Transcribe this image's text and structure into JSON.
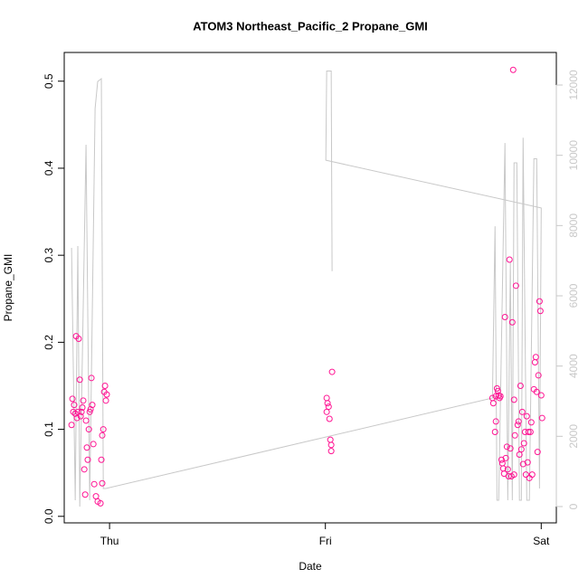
{
  "chart_data": {
    "type": "scatter",
    "title": "ATOM3 Northeast_Pacific_2 Propane_GMI",
    "xlabel": "Date",
    "ylabel": "Propane_GMI",
    "xlim": [
      -0.21,
      2.07
    ],
    "xticks": [
      {
        "value": 0,
        "label": "Thu"
      },
      {
        "value": 1,
        "label": "Fri"
      },
      {
        "value": 2,
        "label": "Sat"
      }
    ],
    "ylim": [
      -0.0075,
      0.533
    ],
    "yticks": [
      {
        "value": 0,
        "label": "0.0"
      },
      0.1,
      0.2,
      0.3,
      0.4,
      0.5
    ],
    "y2lim": [
      -464,
      12927
    ],
    "y2ticks": [
      0,
      2000,
      4000,
      6000,
      8000,
      10000,
      12000
    ],
    "series": [
      {
        "type": "scatter",
        "color": "#ff1493",
        "x": [
          -0.176,
          -0.172,
          -0.168,
          -0.164,
          -0.159,
          -0.155,
          -0.151,
          -0.147,
          -0.143,
          -0.138,
          -0.134,
          -0.13,
          -0.126,
          -0.122,
          -0.117,
          -0.113,
          -0.109,
          -0.105,
          -0.101,
          -0.096,
          -0.092,
          -0.088,
          -0.084,
          -0.08,
          -0.075,
          -0.071,
          -0.063,
          -0.055,
          -0.042,
          -0.038,
          -0.034,
          -0.029,
          -0.025,
          -0.021,
          -0.017,
          -0.013,
          -0.034,
          1.006,
          1.01,
          1.015,
          1.006,
          1.019,
          1.023,
          1.027,
          1.027,
          1.031,
          1.774,
          1.778,
          1.786,
          1.79,
          1.795,
          1.799,
          1.803,
          1.807,
          1.811,
          1.816,
          1.82,
          1.824,
          1.828,
          1.832,
          1.836,
          1.841,
          1.845,
          1.849,
          1.853,
          1.857,
          1.862,
          1.866,
          1.87,
          1.874,
          1.878,
          1.883,
          1.891,
          1.895,
          1.899,
          1.904,
          1.908,
          1.912,
          1.916,
          1.92,
          1.925,
          1.929,
          1.933,
          1.937,
          1.941,
          1.945,
          1.95,
          1.954,
          1.958,
          1.966,
          1.971,
          1.975,
          1.979,
          1.983,
          1.987,
          1.992,
          1.996,
          2.0,
          2.004,
          1.79,
          1.874
        ],
        "values": [
          0.105,
          0.135,
          0.12,
          0.128,
          0.118,
          0.207,
          0.113,
          0.12,
          0.204,
          0.157,
          0.115,
          0.12,
          0.125,
          0.133,
          0.054,
          0.025,
          0.11,
          0.079,
          0.065,
          0.1,
          0.12,
          0.123,
          0.159,
          0.128,
          0.083,
          0.037,
          0.023,
          0.017,
          0.015,
          0.065,
          0.093,
          0.1,
          0.143,
          0.15,
          0.133,
          0.14,
          0.038,
          0.136,
          0.13,
          0.126,
          0.12,
          0.112,
          0.088,
          0.082,
          0.075,
          0.166,
          0.136,
          0.13,
          0.097,
          0.109,
          0.147,
          0.144,
          0.139,
          0.136,
          0.138,
          0.065,
          0.061,
          0.055,
          0.049,
          0.229,
          0.067,
          0.08,
          0.054,
          0.046,
          0.295,
          0.078,
          0.046,
          0.223,
          0.513,
          0.048,
          0.093,
          0.265,
          0.105,
          0.109,
          0.071,
          0.15,
          0.077,
          0.12,
          0.06,
          0.084,
          0.097,
          0.048,
          0.115,
          0.062,
          0.097,
          0.044,
          0.097,
          0.108,
          0.048,
          0.146,
          0.177,
          0.183,
          0.143,
          0.074,
          0.162,
          0.247,
          0.236,
          0.139,
          0.113,
          0.138,
          0.134
        ]
      },
      {
        "type": "line",
        "axis": "y2",
        "color": "#c8c8c8",
        "x": [
          -0.176,
          -0.159,
          -0.147,
          -0.138,
          -0.109,
          -0.092,
          -0.067,
          -0.055,
          -0.038,
          -0.029,
          -0.017,
          1.774,
          1.786,
          1.795,
          1.803,
          1.832,
          1.845,
          1.857,
          1.866,
          1.874,
          1.887,
          1.899,
          1.908,
          1.916,
          1.933,
          1.945,
          1.966,
          1.979,
          1.992,
          2.0,
          1.002,
          1.006,
          1.027,
          1.031
        ],
        "values": [
          7364,
          180,
          7416,
          0,
          10300,
          180,
          11330,
          12100,
          12180,
          515,
          515,
          3090,
          7980,
          180,
          180,
          10350,
          180,
          6950,
          180,
          9785,
          9785,
          180,
          180,
          10500,
          180,
          180,
          9900,
          9900,
          515,
          8500,
          9860,
          12400,
          12400,
          6700
        ]
      }
    ]
  }
}
